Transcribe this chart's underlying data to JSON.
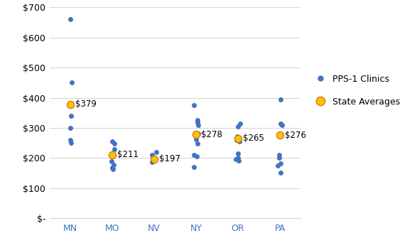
{
  "states": [
    "MN",
    "MO",
    "NV",
    "NY",
    "OR",
    "PA"
  ],
  "state_averages": {
    "MN": 379,
    "MO": 211,
    "NV": 197,
    "NY": 278,
    "OR": 265,
    "PA": 276
  },
  "clinic_data": {
    "MN": [
      660,
      450,
      340,
      300,
      260,
      250
    ],
    "MO": [
      255,
      248,
      230,
      190,
      178,
      168,
      163
    ],
    "NV": [
      220,
      210,
      187
    ],
    "NY": [
      375,
      325,
      318,
      310,
      280,
      278,
      262,
      248,
      210,
      205,
      170
    ],
    "OR": [
      315,
      305,
      272,
      260,
      255,
      215,
      202,
      197,
      192
    ],
    "PA": [
      395,
      315,
      310,
      278,
      210,
      200,
      182,
      175,
      152
    ]
  },
  "clinic_color": "#4472C4",
  "avg_color": "#FFC000",
  "avg_edge_color": "#C07000",
  "clinic_marker_size": 25,
  "avg_marker_size": 55,
  "ylim": [
    0,
    700
  ],
  "yticks": [
    0,
    100,
    200,
    300,
    400,
    500,
    600,
    700
  ],
  "ytick_labels": [
    "$-",
    "$100",
    "$200",
    "$300",
    "$400",
    "$500",
    "$600",
    "$700"
  ],
  "legend_labels": [
    "PPS-1 Clinics",
    "State Averages"
  ],
  "background_color": "#ffffff",
  "grid_color": "#d3d3d3",
  "font_size": 9,
  "label_font_size": 8.5,
  "figsize": [
    5.8,
    3.49
  ],
  "dpi": 100
}
